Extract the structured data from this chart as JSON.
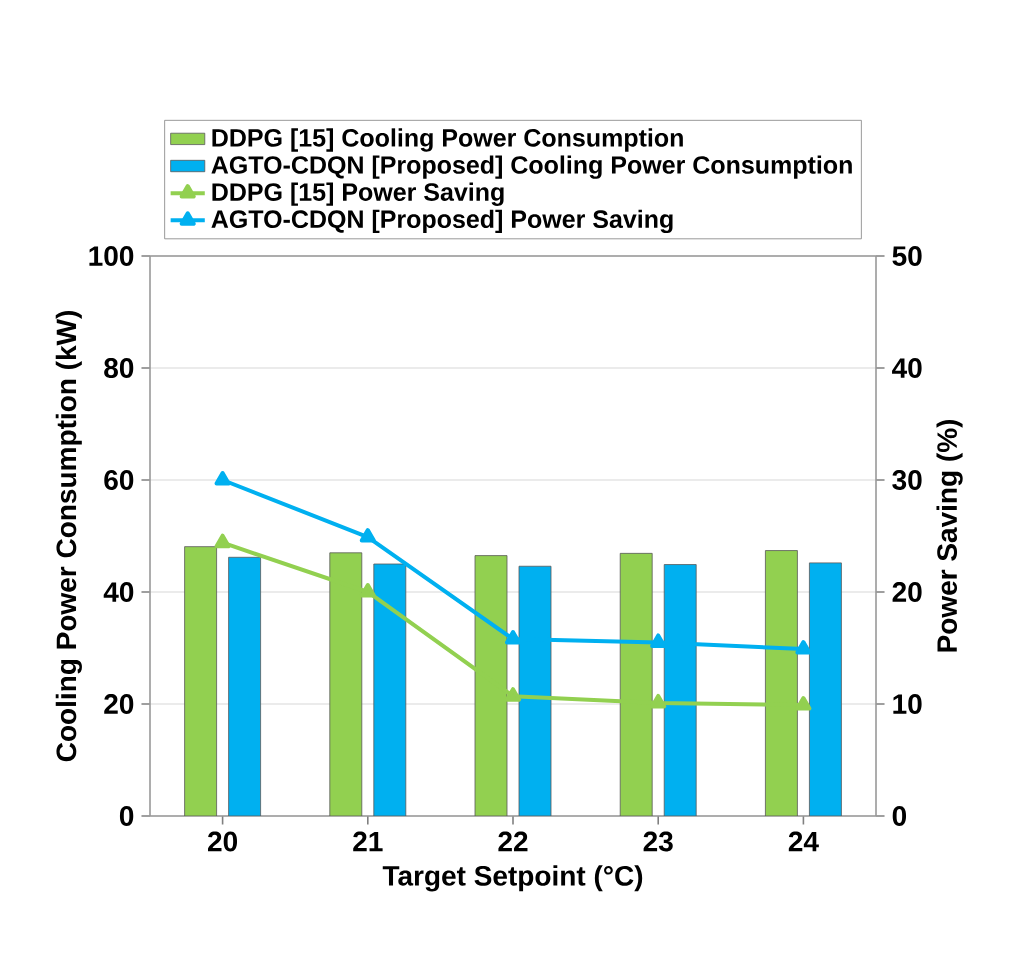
{
  "chart_data": {
    "type": "bar",
    "xlabel": "Target Setpoint (°C)",
    "ylabel": "Cooling Power Consumption (kW)",
    "y2label": "Power Saving (%)",
    "categories": [
      "20",
      "21",
      "22",
      "23",
      "24"
    ],
    "series": [
      {
        "name": "DDPG [15] Cooling Power Consumption",
        "color": "#92d050",
        "values": [
          48.1,
          47.0,
          46.5,
          46.9,
          47.4
        ]
      },
      {
        "name": "AGTO-CDQN [Proposed] Cooling Power Consumption",
        "color": "#00b0f0",
        "values": [
          46.2,
          45.0,
          44.6,
          44.9,
          45.2
        ]
      },
      {
        "name": "DDPG [15] Power Saving",
        "type": "line",
        "axis": "y2",
        "marker": "triangle",
        "color": "#92d050",
        "values": [
          24.4,
          20.0,
          10.7,
          10.1,
          9.9
        ]
      },
      {
        "name": "AGTO-CDQN [Proposed] Power Saving",
        "type": "line",
        "axis": "y2",
        "marker": "triangle",
        "color": "#00b0f0",
        "values": [
          30.0,
          24.9,
          15.8,
          15.5,
          14.9
        ]
      }
    ],
    "ylim": [
      0,
      100
    ],
    "yticks": [
      0,
      20,
      40,
      60,
      80,
      100
    ],
    "y2lim": [
      0,
      50
    ],
    "y2ticks": [
      0,
      10,
      20,
      30,
      40,
      50
    ],
    "grid": "y",
    "legend": "top"
  }
}
